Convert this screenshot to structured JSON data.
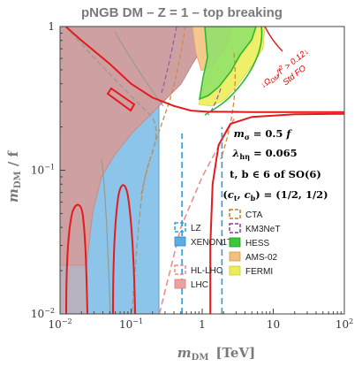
{
  "chart_data": {
    "type": "area",
    "title": "pNGB DM  – Z = 1  – top breaking",
    "xlabel": {
      "symbol": "m",
      "sub": "DM",
      "unit": "[TeV]"
    },
    "ylabel": {
      "symbol": "m",
      "sub": "DM",
      "rest": " / f"
    },
    "xscale": "log",
    "yscale": "log",
    "xlim": [
      0.01,
      100
    ],
    "ylim": [
      0.01,
      1
    ],
    "grid": false,
    "x_ticks": [
      {
        "v": 0.01,
        "base": "10",
        "exp": "−2"
      },
      {
        "v": 0.1,
        "base": "10",
        "exp": "−1"
      },
      {
        "v": 1,
        "base": "1",
        "exp": ""
      },
      {
        "v": 10,
        "base": "10",
        "exp": ""
      },
      {
        "v": 100,
        "base": "10",
        "exp": "2"
      }
    ],
    "y_ticks": [
      {
        "v": 0.01,
        "base": "10",
        "exp": "−2"
      },
      {
        "v": 0.1,
        "base": "10",
        "exp": "−1"
      },
      {
        "v": 1,
        "base": "1",
        "exp": ""
      }
    ],
    "annotations": [
      {
        "text": "m_σ = 0.5 f",
        "parts": [
          "m",
          "σ",
          " = 0.5 f"
        ]
      },
      {
        "text": "λ_hη = 0.065",
        "parts": [
          "λ",
          "hη",
          " = 0.065"
        ]
      },
      {
        "text": "t, b ∈ 6 of SO(6)",
        "parts": [
          "t, b ∈ 6 of SO(6)",
          "",
          ""
        ]
      },
      {
        "text": "(c_t, c_b) = (1/2, 1/2)",
        "parts": [
          "(c",
          "t",
          ", c"
        ],
        "tail_sub": "b",
        "tail": ") = (1/2, 1/2)"
      }
    ],
    "relic_labels": [
      "↓Ω_DM/Ω² > 0.12↓",
      "Std FO"
    ],
    "relic_label_parts": {
      "pre": "↓Ω",
      "sub": "DM",
      "mid": "/f",
      "sup": "2",
      "post": " > 0.12↓",
      "line2": "Std FO"
    },
    "legend": {
      "col1": [
        {
          "label": "LZ",
          "style": "dashed",
          "color": "#2f9bd8"
        },
        {
          "label": "XENON1T",
          "style": "filled",
          "color": "#5aaee6"
        },
        {
          "label": "HL-LHC",
          "style": "dashed",
          "color": "#f08c8c"
        },
        {
          "label": "LHC",
          "style": "filled",
          "color": "#f0a0a0"
        }
      ],
      "col2": [
        {
          "label": "CTA",
          "style": "dashed",
          "color": "#c87828"
        },
        {
          "label": "KM3NeT",
          "style": "dashed",
          "color": "#8a3a9e"
        },
        {
          "label": "HESS",
          "style": "filled",
          "color": "#3cc83c"
        },
        {
          "label": "AMS-02",
          "style": "filled",
          "color": "#f2c080"
        },
        {
          "label": "FERMI",
          "style": "filled",
          "color": "#ecec5a"
        }
      ]
    },
    "colors": {
      "relic": "#e41a1c",
      "lz": "#2f9bd8",
      "xenon": "#8cc4ea",
      "lhc": "#e8a2a0",
      "hllhc": "#f08c8c",
      "hess": "#3cc83c",
      "ams": "#f5c98e",
      "fermi": "#eef06a",
      "cta": "#d08a3c",
      "km3": "#9a58b0"
    },
    "series": [
      {
        "id": "relic-main",
        "kind": "line",
        "points": [
          [
            0.012,
            1
          ],
          [
            0.02,
            0.8
          ],
          [
            0.05,
            0.55
          ],
          [
            0.1,
            0.4
          ],
          [
            0.2,
            0.32
          ],
          [
            0.4,
            0.28
          ],
          [
            0.7,
            0.26
          ],
          [
            1.2,
            0.255
          ],
          [
            2,
            0.255
          ],
          [
            5,
            0.254
          ],
          [
            20,
            0.254
          ],
          [
            100,
            0.254
          ]
        ]
      },
      {
        "id": "relic-lower",
        "kind": "line",
        "points": [
          [
            1.3,
            0.01
          ],
          [
            1.3,
            0.03
          ],
          [
            1.4,
            0.08
          ],
          [
            1.7,
            0.15
          ],
          [
            2.5,
            0.21
          ],
          [
            5,
            0.235
          ],
          [
            20,
            0.245
          ],
          [
            100,
            0.247
          ]
        ]
      },
      {
        "id": "lz-limit",
        "kind": "line",
        "points": [
          [
            0.52,
            0.01
          ],
          [
            0.52,
            0.18
          ]
        ]
      },
      {
        "id": "lz-limit-2",
        "kind": "line",
        "points": [
          [
            1.9,
            0.01
          ],
          [
            1.9,
            0.2
          ]
        ]
      },
      {
        "id": "hl-lhc",
        "kind": "line",
        "points": [
          [
            0.25,
            0.01
          ],
          [
            0.5,
            0.04
          ],
          [
            1,
            0.09
          ],
          [
            2,
            0.17
          ],
          [
            3,
            0.24
          ]
        ]
      }
    ]
  }
}
